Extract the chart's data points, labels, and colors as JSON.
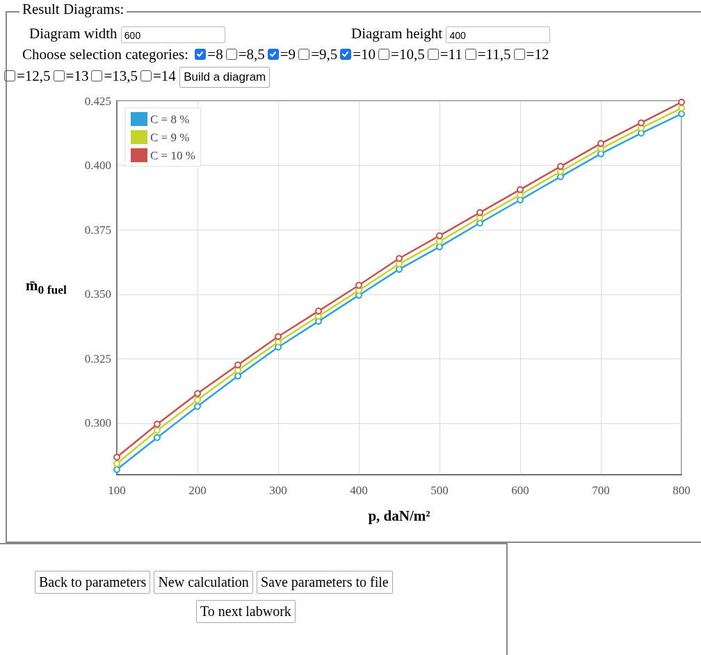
{
  "chart_data": {
    "type": "line",
    "xlabel": "p, daN/m²",
    "ylabel": "m̄$_{0 fuel}$",
    "x": [
      100,
      150,
      200,
      250,
      300,
      350,
      400,
      450,
      500,
      550,
      600,
      650,
      700,
      750,
      800
    ],
    "series": [
      {
        "name": "C = 8 %",
        "color": "#2fa3d8",
        "values": [
          0.282,
          0.2944,
          0.3065,
          0.3183,
          0.3295,
          0.3395,
          0.3496,
          0.3597,
          0.3684,
          0.3776,
          0.3866,
          0.3956,
          0.4045,
          0.4125,
          0.42
        ]
      },
      {
        "name": "C = 9 %",
        "color": "#c5d32e",
        "values": [
          0.2843,
          0.2972,
          0.309,
          0.3205,
          0.3315,
          0.3415,
          0.3515,
          0.3618,
          0.3705,
          0.3797,
          0.3886,
          0.3976,
          0.4065,
          0.4145,
          0.4222
        ]
      },
      {
        "name": "C = 10 %",
        "color": "#c9524c",
        "values": [
          0.2868,
          0.2996,
          0.3115,
          0.3226,
          0.3336,
          0.3435,
          0.3535,
          0.3639,
          0.3727,
          0.3817,
          0.3906,
          0.3996,
          0.4085,
          0.4165,
          0.4245
        ]
      }
    ],
    "xlim": [
      100,
      800
    ],
    "xticks": [
      100,
      200,
      300,
      400,
      500,
      600,
      700,
      800
    ],
    "ylim": [
      0.28,
      0.425
    ],
    "yticks": [
      {
        "value": 0.3,
        "label": "0.300"
      },
      {
        "value": 0.325,
        "label": "0.325"
      },
      {
        "value": 0.35,
        "label": "0.350"
      },
      {
        "value": 0.375,
        "label": "0.375"
      },
      {
        "value": 0.4,
        "label": "0.400"
      },
      {
        "value": 0.425,
        "label": "0.425"
      }
    ],
    "grid": true,
    "legend": "top left",
    "marker": "circle",
    "line_style": "solid",
    "annotations": [
      "Result Diagrams:",
      "Diagram width",
      "600",
      "Diagram height",
      "400",
      "Choose selection categories:",
      "=8",
      "=8,5",
      "=9",
      "=9,5",
      "=10",
      "=10,5",
      "=11",
      "=11,5",
      "=12",
      "=12,5",
      "=13",
      "=13,5",
      "=14",
      "Build a diagram",
      "Back to parameters",
      "New calculation",
      "Save parameters to file",
      "To next labwork"
    ]
  }
}
